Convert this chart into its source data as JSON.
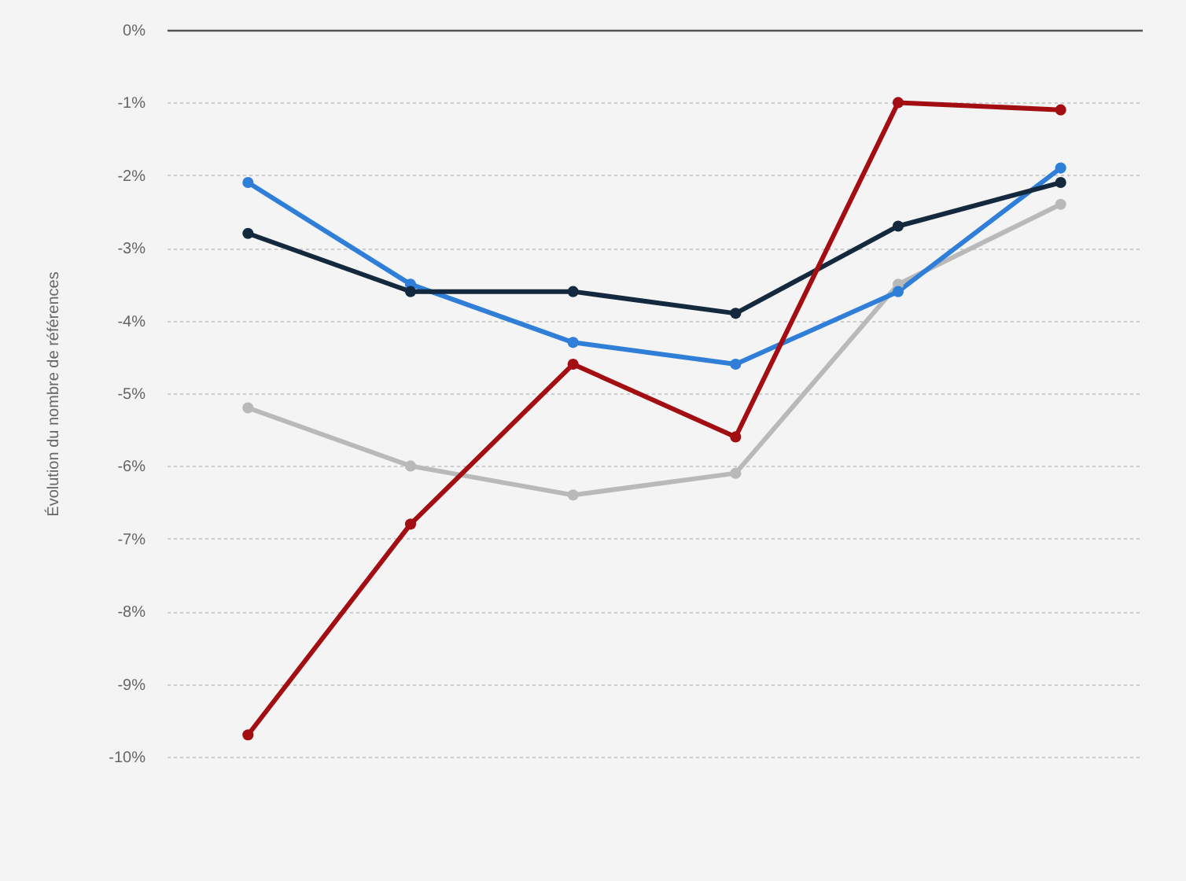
{
  "chart_data": {
    "type": "line",
    "ylabel": "Évolution du nombre de références",
    "categories": [
      null,
      null,
      null,
      null,
      null,
      null
    ],
    "series": [
      {
        "color": "#b9b9b9",
        "values": [
          -5.2,
          -6.0,
          -6.4,
          -6.1,
          -3.5,
          -2.4
        ]
      },
      {
        "color": "#2f7ed8",
        "values": [
          -2.1,
          -3.5,
          -4.3,
          -4.6,
          -3.6,
          -1.9
        ]
      },
      {
        "color": "#14293d",
        "values": [
          -2.8,
          -3.6,
          -3.6,
          -3.9,
          -2.7,
          -2.1
        ]
      },
      {
        "color": "#a30e12",
        "values": [
          -9.7,
          -6.8,
          -4.6,
          -5.6,
          -1.0,
          -1.1
        ]
      }
    ],
    "ylim": [
      -10,
      0
    ],
    "yticks": [
      {
        "value": -10,
        "label": "-10%"
      },
      {
        "value": -9,
        "label": "-9%"
      },
      {
        "value": -8,
        "label": "-8%"
      },
      {
        "value": -7,
        "label": "-7%"
      },
      {
        "value": -6,
        "label": "-6%"
      },
      {
        "value": -5,
        "label": "-5%"
      },
      {
        "value": -4,
        "label": "-4%"
      },
      {
        "value": -3,
        "label": "-3%"
      },
      {
        "value": -2,
        "label": "-2%"
      },
      {
        "value": -1,
        "label": "-1%"
      },
      {
        "value": 0,
        "label": "0%"
      }
    ],
    "grid": "y",
    "tick_labels": "y",
    "marker": "circle",
    "line_style": "solid",
    "legend": false
  }
}
